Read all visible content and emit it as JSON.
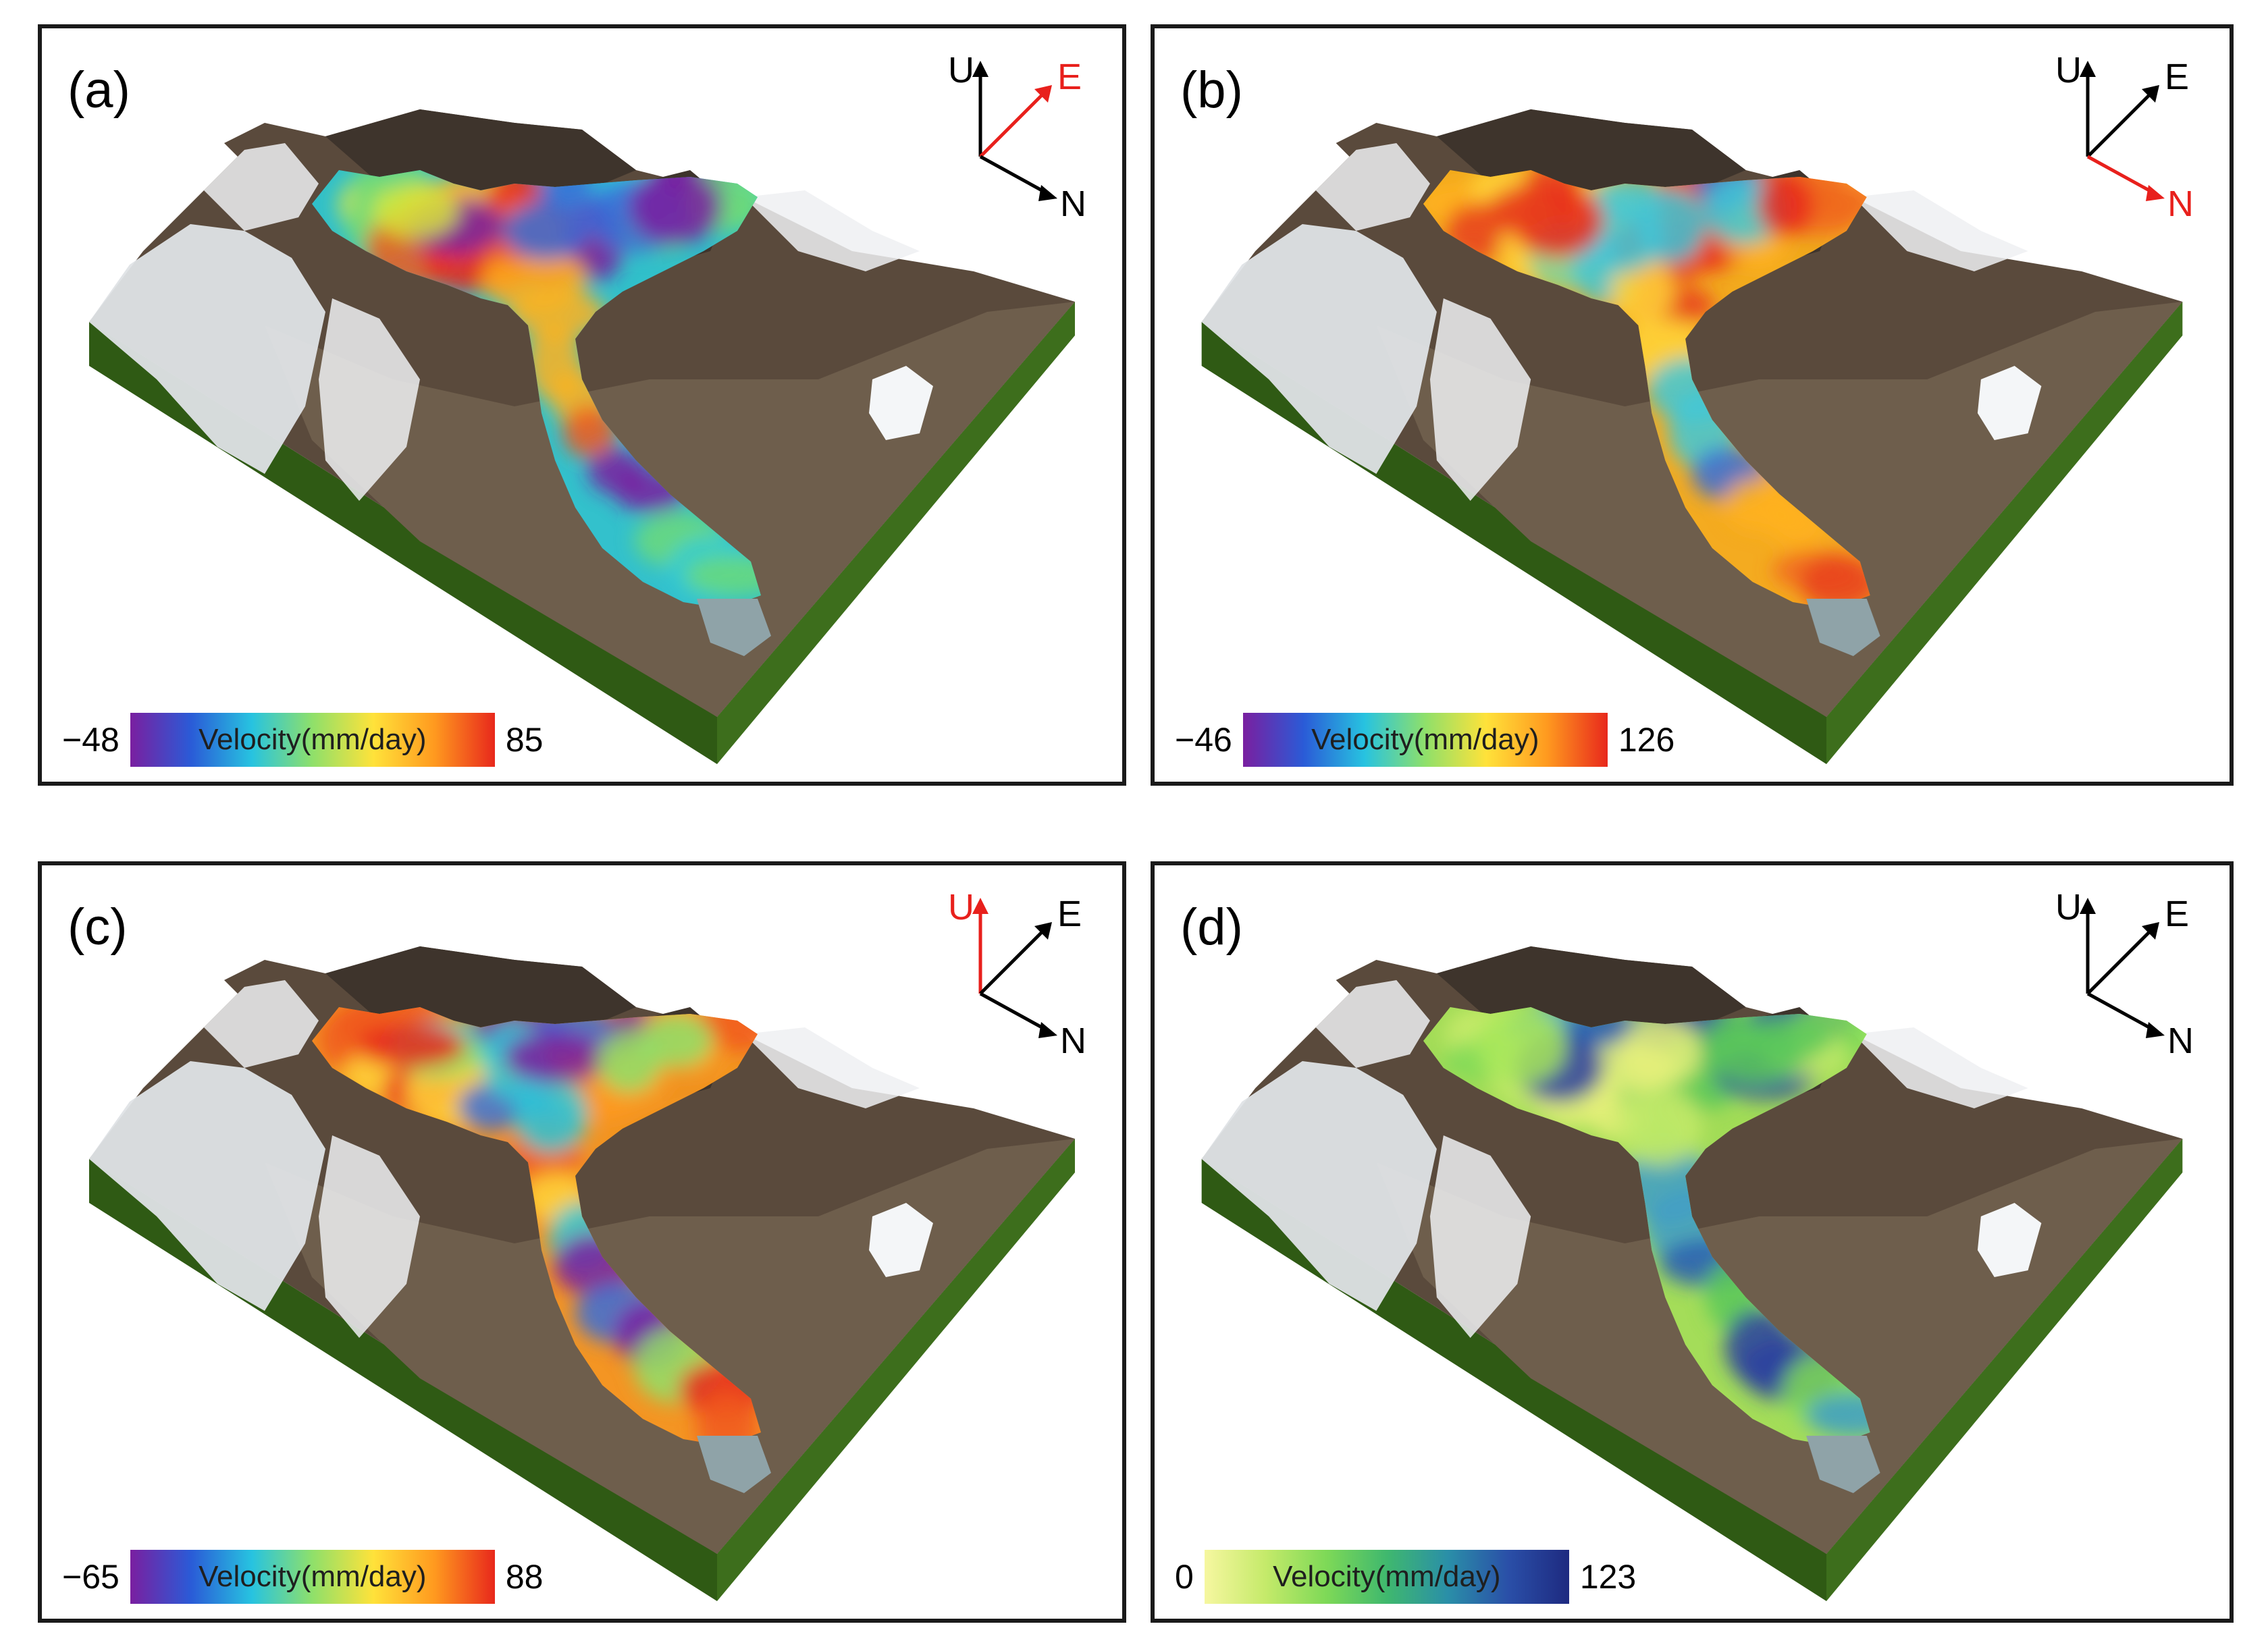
{
  "figure": {
    "panels": [
      {
        "id": "a",
        "label": "(a)",
        "axes": {
          "up": "U",
          "east": "E",
          "north": "N",
          "highlight": "E"
        },
        "colorbar": {
          "min": "−48",
          "max": "85",
          "title": "Velocity(mm/day)",
          "colormap": "jet",
          "stops": [
            "#7a1fa0",
            "#2a5bd7",
            "#27c3e0",
            "#8fe06a",
            "#ffe23a",
            "#ff9a1f",
            "#e8281c"
          ]
        },
        "glacier_palette": [
          "#2ecad7",
          "#6cd97a",
          "#d8e63a",
          "#ffb21c",
          "#f05a1c",
          "#e8281c",
          "#3a6fd8",
          "#7a1fa0"
        ]
      },
      {
        "id": "b",
        "label": "(b)",
        "axes": {
          "up": "U",
          "east": "E",
          "north": "N",
          "highlight": "N"
        },
        "colorbar": {
          "min": "−46",
          "max": "126",
          "title": "Velocity(mm/day)",
          "colormap": "jet",
          "stops": [
            "#7a1fa0",
            "#2a5bd7",
            "#27c3e0",
            "#8fe06a",
            "#ffe23a",
            "#ff9a1f",
            "#e8281c"
          ]
        },
        "glacier_palette": [
          "#ffb21c",
          "#f06a1c",
          "#e8401c",
          "#ffd53a",
          "#7ed7a0",
          "#3fc8d8",
          "#3a6fd8",
          "#e8281c"
        ]
      },
      {
        "id": "c",
        "label": "(c)",
        "axes": {
          "up": "U",
          "east": "E",
          "north": "N",
          "highlight": "U"
        },
        "colorbar": {
          "min": "−65",
          "max": "88",
          "title": "Velocity(mm/day)",
          "colormap": "jet",
          "stops": [
            "#7a1fa0",
            "#2a5bd7",
            "#27c3e0",
            "#8fe06a",
            "#ffe23a",
            "#ff9a1f",
            "#e8281c"
          ]
        },
        "glacier_palette": [
          "#ff9a1f",
          "#f05a1c",
          "#e8281c",
          "#ffd53a",
          "#2ecad7",
          "#3a6fd8",
          "#7a1fa0",
          "#8fe06a"
        ]
      },
      {
        "id": "d",
        "label": "(d)",
        "axes": {
          "up": "U",
          "east": "E",
          "north": "N",
          "highlight": ""
        },
        "colorbar": {
          "min": "0",
          "max": "123",
          "title": "Velocity(mm/day)",
          "colormap": "YlGnBu",
          "stops": [
            "#f6f7a0",
            "#c5ea6a",
            "#7ed957",
            "#3fb86e",
            "#2a8fa8",
            "#2a4fa8",
            "#1e2a80"
          ]
        },
        "glacier_palette": [
          "#a8e85a",
          "#7ed957",
          "#c5ea6a",
          "#3f9ec8",
          "#2a5fb0",
          "#e6f07a",
          "#5ac85a",
          "#2a3fa0"
        ]
      }
    ],
    "colors": {
      "axis_default": "#000000",
      "axis_highlight": "#e8201c",
      "terrain_rock": "#5a4a3c",
      "terrain_valley": "#6e5e4c",
      "terrain_snow": "#eef0f2",
      "base_green": "#2f5a14",
      "border": "#1a1a1a"
    }
  }
}
